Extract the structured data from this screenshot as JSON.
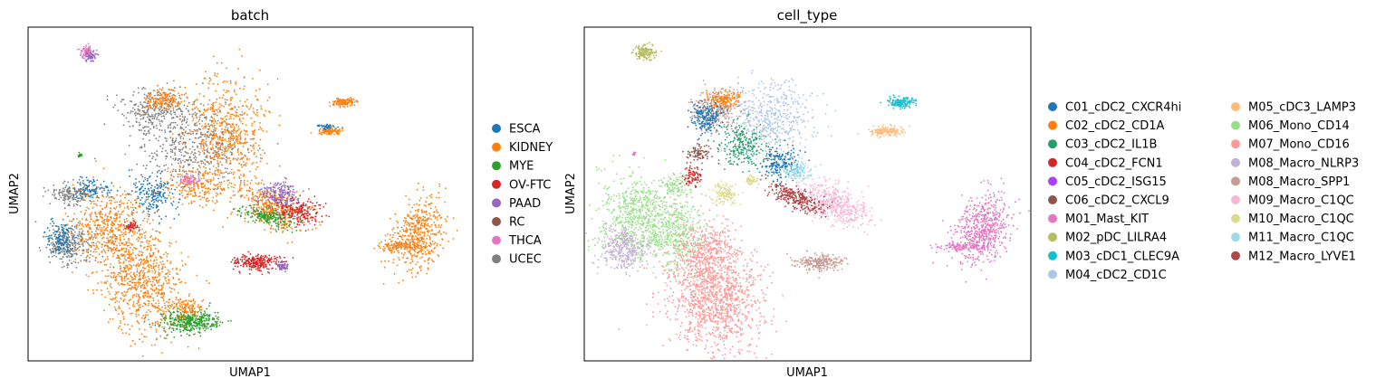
{
  "chart_data": [
    {
      "type": "scatter",
      "title": "batch",
      "xlabel": "UMAP1",
      "ylabel": "UMAP2",
      "grid": false,
      "ticks": false,
      "legend_position": "right",
      "series": [
        {
          "name": "ESCA",
          "color": "#1f77b4"
        },
        {
          "name": "KIDNEY",
          "color": "#ff7f0e"
        },
        {
          "name": "MYE",
          "color": "#2ca02c"
        },
        {
          "name": "OV-FTC",
          "color": "#d62728"
        },
        {
          "name": "PAAD",
          "color": "#9467bd"
        },
        {
          "name": "RC",
          "color": "#8c564b"
        },
        {
          "name": "THCA",
          "color": "#e377c2"
        },
        {
          "name": "UCEC",
          "color": "#7f7f7f"
        }
      ]
    },
    {
      "type": "scatter",
      "title": "cell_type",
      "xlabel": "UMAP1",
      "ylabel": "UMAP2",
      "grid": false,
      "ticks": false,
      "legend_position": "right",
      "series": [
        {
          "name": "C01_cDC2_CXCR4hi",
          "color": "#1f77b4"
        },
        {
          "name": "C02_cDC2_CD1A",
          "color": "#ff7f0e"
        },
        {
          "name": "C03_cDC2_IL1B",
          "color": "#279e68"
        },
        {
          "name": "C04_cDC2_FCN1",
          "color": "#d62728"
        },
        {
          "name": "C05_cDC2_ISG15",
          "color": "#aa40fc"
        },
        {
          "name": "C06_cDC2_CXCL9",
          "color": "#8c564b"
        },
        {
          "name": "M01_Mast_KIT",
          "color": "#e377c2"
        },
        {
          "name": "M02_pDC_LILRA4",
          "color": "#b5bd61"
        },
        {
          "name": "M03_cDC1_CLEC9A",
          "color": "#17becf"
        },
        {
          "name": "M04_cDC2_CD1C",
          "color": "#aec7e8"
        },
        {
          "name": "M05_cDC3_LAMP3",
          "color": "#ffbb78"
        },
        {
          "name": "M06_Mono_CD14",
          "color": "#98df8a"
        },
        {
          "name": "M07_Mono_CD16",
          "color": "#ff9896"
        },
        {
          "name": "M08_Macro_NLRP3",
          "color": "#c5b0d5"
        },
        {
          "name": "M08_Macro_SPP1",
          "color": "#c49c94"
        },
        {
          "name": "M09_Macro_C1QC",
          "color": "#f7b6d2"
        },
        {
          "name": "M10_Macro_C1QC",
          "color": "#dbdb8d"
        },
        {
          "name": "M11_Macro_C1QC",
          "color": "#9edae5"
        },
        {
          "name": "M12_Macro_LYVE1",
          "color": "#ad494a"
        }
      ]
    }
  ]
}
